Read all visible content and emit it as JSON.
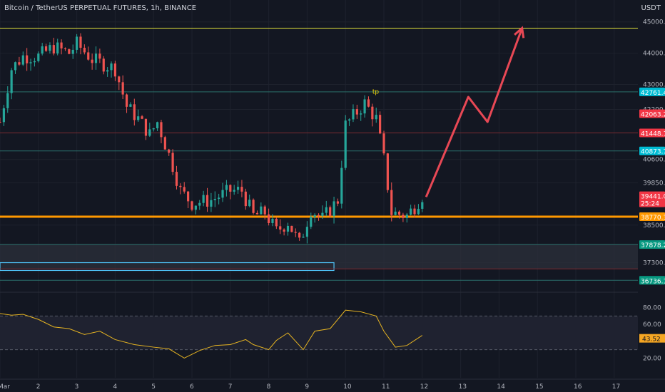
{
  "header": {
    "title": "Bitcoin / TetherUS PERPETUAL FUTURES, 1h, BINANCE",
    "currency": "USDT"
  },
  "colors": {
    "background": "#131722",
    "grid": "#1e222d",
    "text": "#b2b5be",
    "bull": "#26a69a",
    "bear": "#ef5350",
    "yellow_line": "#e0e03a",
    "orange_line": "#ff9800",
    "rsi": "#e6b422",
    "arrow": "#e84855",
    "box": "#4fc3f7"
  },
  "chart_data": {
    "type": "candlestick",
    "symbol": "BTCUSDT",
    "timeframe": "1h",
    "x_ticks": [
      "Mar",
      "2",
      "3",
      "4",
      "5",
      "6",
      "7",
      "8",
      "9",
      "10",
      "11",
      "12",
      "13",
      "14",
      "15",
      "16",
      "17"
    ],
    "y_ticks": [
      45000.0,
      44000.0,
      43000.0,
      42200.0,
      40600.0,
      39850.0,
      38500.0,
      37300.0
    ],
    "y_range": [
      36400,
      45700
    ],
    "price_path": [
      [
        0,
        41800
      ],
      [
        0.3,
        43500
      ],
      [
        0.6,
        43900
      ],
      [
        1.0,
        43900
      ],
      [
        1.4,
        44200
      ],
      [
        1.8,
        44000
      ],
      [
        2.0,
        44300
      ],
      [
        2.4,
        43800
      ],
      [
        2.8,
        43600
      ],
      [
        3.0,
        43500
      ],
      [
        3.3,
        42300
      ],
      [
        3.6,
        41900
      ],
      [
        3.9,
        41400
      ],
      [
        4.1,
        41800
      ],
      [
        4.5,
        40400
      ],
      [
        4.7,
        39600
      ],
      [
        5.0,
        39200
      ],
      [
        5.5,
        39300
      ],
      [
        6.0,
        39600
      ],
      [
        6.3,
        39600
      ],
      [
        6.6,
        38800
      ],
      [
        6.9,
        38900
      ],
      [
        7.2,
        38300
      ],
      [
        7.5,
        38600
      ],
      [
        7.8,
        37900
      ],
      [
        8.1,
        39000
      ],
      [
        8.4,
        38700
      ],
      [
        8.8,
        39300
      ],
      [
        9.0,
        41700
      ],
      [
        9.5,
        42400
      ],
      [
        9.8,
        41900
      ],
      [
        10.0,
        40600
      ],
      [
        10.2,
        38900
      ],
      [
        10.6,
        38800
      ],
      [
        10.8,
        39100
      ],
      [
        11.0,
        39441
      ]
    ],
    "horizontal_levels": [
      {
        "price": 44800,
        "type": "resistance"
      },
      {
        "price": 42761.4,
        "label": "42761.4",
        "type": "level"
      },
      {
        "price": 41448.1,
        "label": "41448.1",
        "type": "level"
      },
      {
        "price": 40873.7,
        "label": "40873.7",
        "type": "level"
      },
      {
        "price": 38770.3,
        "label": "38770.3",
        "type": "support"
      },
      {
        "price": 37878.2,
        "label": "37878.2",
        "type": "level"
      },
      {
        "price": 37100,
        "type": "level"
      },
      {
        "price": 36736.1,
        "label": "36736.1",
        "type": "level"
      }
    ],
    "price_labels": [
      {
        "value": "42761.4",
        "color": "#00bcd4"
      },
      {
        "value": "42063.2",
        "color": "#f23645"
      },
      {
        "value": "41448.1",
        "color": "#f23645"
      },
      {
        "value": "40873.7",
        "color": "#00bcd4"
      },
      {
        "value": "39441.0",
        "color": "#f23645",
        "sub": "25:24"
      },
      {
        "value": "38770.3",
        "color": "#ff9800"
      },
      {
        "value": "37878.2",
        "color": "#089981"
      },
      {
        "value": "36736.1",
        "color": "#089981"
      }
    ],
    "annotations": [
      {
        "text": "tp",
        "x": 9.7,
        "y": 42700
      },
      {
        "type": "arrow",
        "points": [
          [
            11.1,
            39400
          ],
          [
            12.2,
            42600
          ],
          [
            12.7,
            41800
          ],
          [
            13.6,
            44800
          ]
        ]
      }
    ],
    "zones": [
      {
        "type": "gray-zone",
        "y_range": [
          37100,
          37900
        ]
      },
      {
        "type": "blue-box",
        "x_range": [
          0,
          8.7
        ],
        "y_range": [
          37050,
          37300
        ]
      }
    ],
    "rsi": {
      "y_ticks": [
        80.0,
        60.0,
        20.0
      ],
      "current": "43.52",
      "levels": [
        70,
        30
      ],
      "series": [
        [
          0,
          73
        ],
        [
          0.3,
          71
        ],
        [
          0.6,
          72
        ],
        [
          1.0,
          66
        ],
        [
          1.4,
          57
        ],
        [
          1.8,
          55
        ],
        [
          2.2,
          48
        ],
        [
          2.6,
          52
        ],
        [
          3.0,
          42
        ],
        [
          3.5,
          36
        ],
        [
          4.0,
          33
        ],
        [
          4.4,
          31
        ],
        [
          4.8,
          20
        ],
        [
          5.2,
          29
        ],
        [
          5.6,
          35
        ],
        [
          6.0,
          36
        ],
        [
          6.4,
          42
        ],
        [
          6.6,
          36
        ],
        [
          7.0,
          30
        ],
        [
          7.2,
          41
        ],
        [
          7.5,
          50
        ],
        [
          7.9,
          30
        ],
        [
          8.2,
          52
        ],
        [
          8.6,
          55
        ],
        [
          9.0,
          77
        ],
        [
          9.4,
          75
        ],
        [
          9.8,
          70
        ],
        [
          10.0,
          52
        ],
        [
          10.3,
          33
        ],
        [
          10.6,
          35
        ],
        [
          11.0,
          47
        ]
      ]
    }
  }
}
